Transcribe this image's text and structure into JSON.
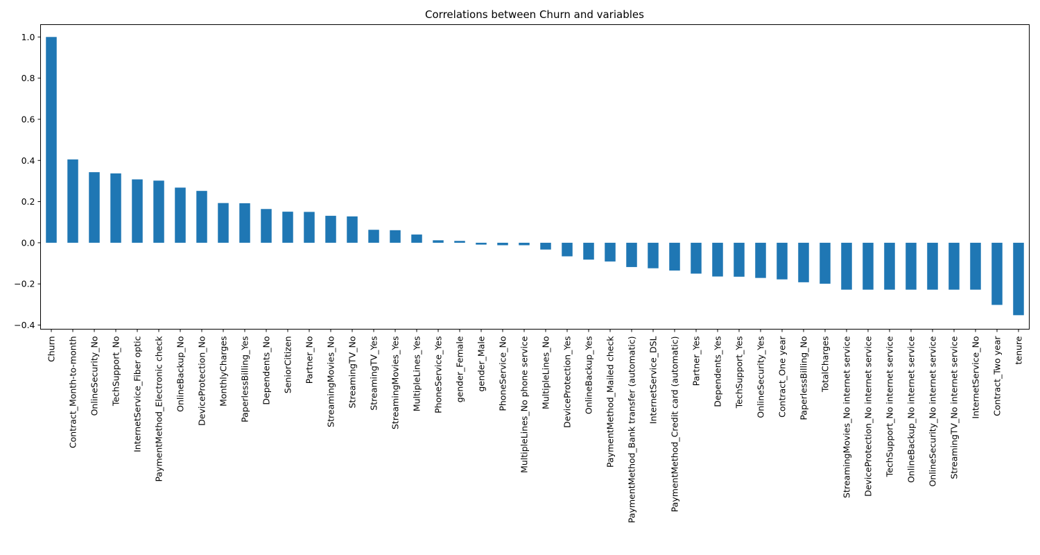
{
  "chart_data": {
    "type": "bar",
    "title": "Correlations between Churn and variables",
    "xlabel": "",
    "ylabel": "",
    "ylim": [
      -0.42,
      1.06
    ],
    "yticks": [
      -0.4,
      -0.2,
      0.0,
      0.2,
      0.4,
      0.6,
      0.8,
      1.0
    ],
    "ytick_labels": [
      "−0.4",
      "−0.2",
      "0.0",
      "0.2",
      "0.4",
      "0.6",
      "0.8",
      "1.0"
    ],
    "grid": false,
    "legend": "none",
    "bar_color": "#1f77b4",
    "categories": [
      "Churn",
      "Contract_Month-to-month",
      "OnlineSecurity_No",
      "TechSupport_No",
      "InternetService_Fiber optic",
      "PaymentMethod_Electronic check",
      "OnlineBackup_No",
      "DeviceProtection_No",
      "MonthlyCharges",
      "PaperlessBilling_Yes",
      "Dependents_No",
      "SeniorCitizen",
      "Partner_No",
      "StreamingMovies_No",
      "StreamingTV_No",
      "StreamingTV_Yes",
      "StreamingMovies_Yes",
      "MultipleLines_Yes",
      "PhoneService_Yes",
      "gender_Female",
      "gender_Male",
      "PhoneService_No",
      "MultipleLines_No phone service",
      "MultipleLines_No",
      "DeviceProtection_Yes",
      "OnlineBackup_Yes",
      "PaymentMethod_Mailed check",
      "PaymentMethod_Bank transfer (automatic)",
      "InternetService_DSL",
      "PaymentMethod_Credit card (automatic)",
      "Partner_Yes",
      "Dependents_Yes",
      "TechSupport_Yes",
      "OnlineSecurity_Yes",
      "Contract_One year",
      "PaperlessBilling_No",
      "TotalCharges",
      "StreamingMovies_No internet service",
      "DeviceProtection_No internet service",
      "TechSupport_No internet service",
      "OnlineBackup_No internet service",
      "OnlineSecurity_No internet service",
      "StreamingTV_No internet service",
      "InternetService_No",
      "Contract_Two year",
      "tenure"
    ],
    "values": [
      1.0,
      0.405,
      0.343,
      0.337,
      0.308,
      0.302,
      0.268,
      0.252,
      0.193,
      0.192,
      0.164,
      0.151,
      0.15,
      0.131,
      0.128,
      0.063,
      0.061,
      0.04,
      0.012,
      0.009,
      -0.009,
      -0.012,
      -0.012,
      -0.033,
      -0.066,
      -0.082,
      -0.091,
      -0.118,
      -0.124,
      -0.135,
      -0.15,
      -0.164,
      -0.165,
      -0.171,
      -0.178,
      -0.192,
      -0.199,
      -0.228,
      -0.228,
      -0.228,
      -0.228,
      -0.228,
      -0.228,
      -0.228,
      -0.302,
      -0.352
    ]
  }
}
